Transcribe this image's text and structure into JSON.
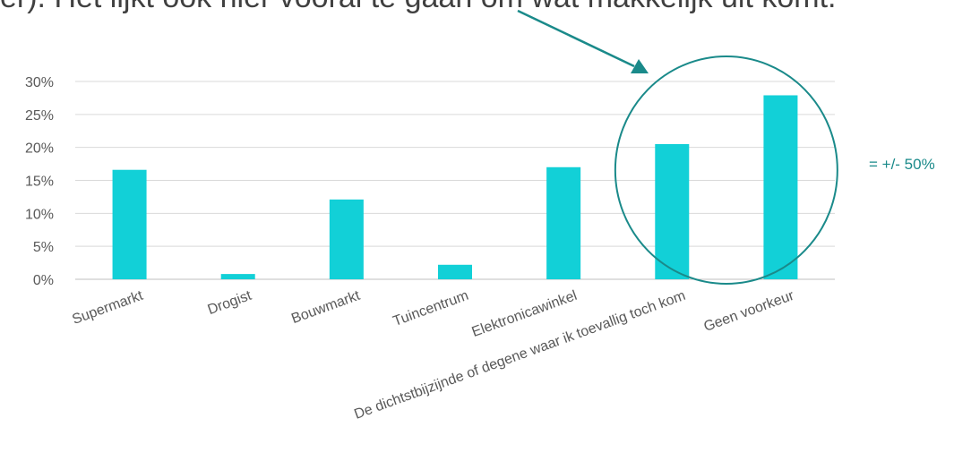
{
  "headline": "er). Het lijkt ook hier vooral te gaan om wat makkelijk uit komt.",
  "chart_data": {
    "type": "bar",
    "categories": [
      "Supermarkt",
      "Drogist",
      "Bouwmarkt",
      "Tuincentrum",
      "Elektronicawinkel",
      "De dichtstbijzijnde of degene waar ik toevallig toch kom",
      "Geen voorkeur"
    ],
    "values": [
      16.6,
      0.8,
      12.1,
      2.2,
      17.0,
      20.5,
      27.9
    ],
    "ylim": [
      0,
      30
    ],
    "yticks": [
      "0%",
      "5%",
      "10%",
      "15%",
      "20%",
      "25%",
      "30%"
    ],
    "grid": true,
    "bar_color": "#12d0d7",
    "annotation": {
      "text": "= +/- 50%",
      "color": "#1a8a8a",
      "circled_categories": [
        "De dichtstbijzijnde of degene waar ik toevallig toch kom",
        "Geen voorkeur"
      ]
    }
  }
}
